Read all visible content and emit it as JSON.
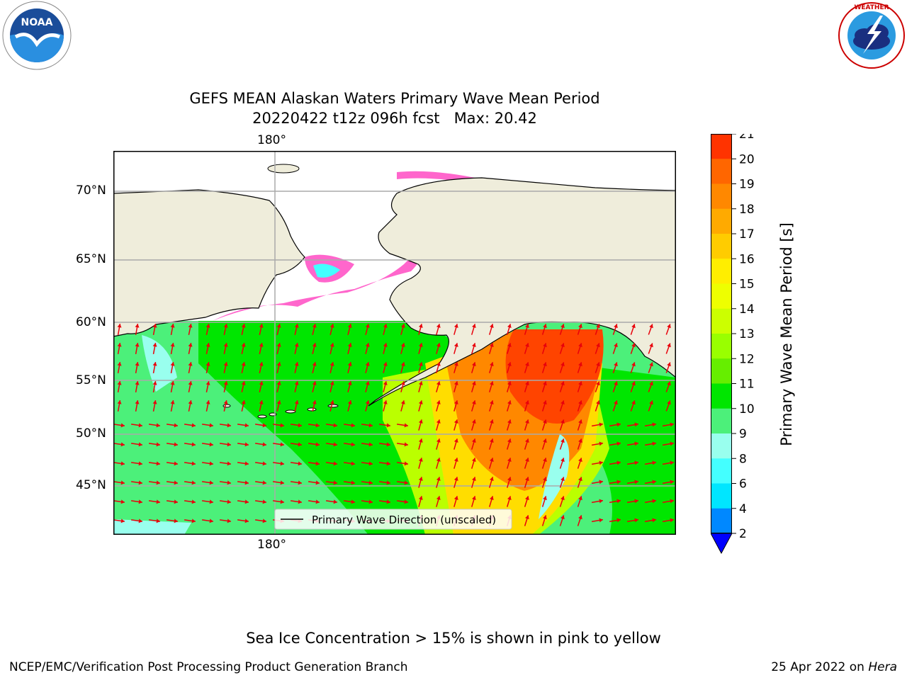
{
  "title": {
    "line1": "GEFS MEAN Alaskan Waters Primary Wave Mean Period",
    "line2": "20220422 t12z 096h fcst   Max: 20.42"
  },
  "logos": {
    "left": "NOAA",
    "right": "National Weather Service"
  },
  "map": {
    "lon_label_top": "180°",
    "lon_label_bottom": "180°",
    "lat_labels": [
      "70°N",
      "65°N",
      "60°N",
      "55°N",
      "50°N",
      "45°N"
    ],
    "legend_text": "Primary Wave Direction (unscaled)",
    "colors": {
      "land": "#efeddb",
      "ice_pink": "#ff66cc",
      "arrow": "#e8000b"
    }
  },
  "colorbar": {
    "label": "Primary Wave Mean Period [s]",
    "ticks": [
      "21",
      "20",
      "19",
      "18",
      "17",
      "16",
      "15",
      "14",
      "13",
      "12",
      "11",
      "10",
      "9",
      "8",
      "6",
      "4",
      "2"
    ],
    "colors": [
      "#ff0000",
      "#ff3300",
      "#ff6600",
      "#ff8800",
      "#ffaa00",
      "#ffcc00",
      "#ffee00",
      "#eeff00",
      "#ccff00",
      "#99ff00",
      "#66ee00",
      "#00e600",
      "#4cf07a",
      "#99ffee",
      "#44ffff",
      "#00e6ff",
      "#0088ff",
      "#0033ff"
    ]
  },
  "footer": {
    "note": "Sea Ice Concentration > 15% is shown in pink to yellow",
    "left": "NCEP/EMC/Verification Post Processing Product Generation Branch",
    "right_date": "25 Apr 2022 on ",
    "right_host": "Hera"
  }
}
